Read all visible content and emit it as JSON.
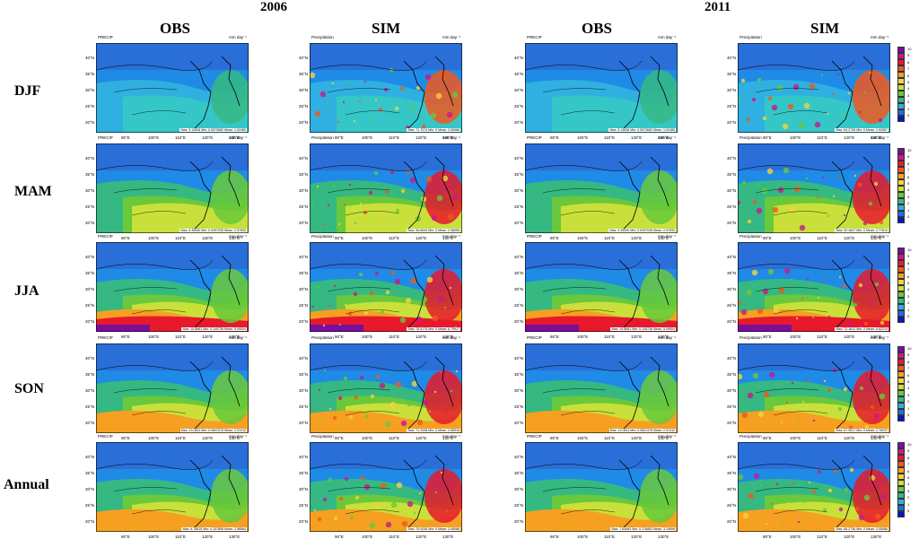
{
  "years": [
    {
      "label": "2006"
    },
    {
      "label": "2011"
    }
  ],
  "columns": [
    "OBS",
    "SIM",
    "OBS",
    "SIM"
  ],
  "rows": [
    "DJF",
    "MAM",
    "JJA",
    "SON",
    "Annual"
  ],
  "panel_text": {
    "obs_title": "PRECIP",
    "sim_title": "Precipitation",
    "unit": "mm day⁻¹",
    "lat_labels": [
      "40°N",
      "35°N",
      "30°N",
      "25°N",
      "20°N"
    ],
    "lon_labels": [
      "90°E",
      "100°E",
      "110°E",
      "120°E",
      "130°E"
    ]
  },
  "panel_stats": [
    [
      "Max: 5.12836  Min: 0.0573682  Mean: 1.02480",
      "Max: 71.7074  Min: 0  Mean: 2.06986",
      "Max: 5.13836  Min: 0.0573682  Mean: 1.02480",
      "Max: 84.2708  Min: 0  Mean: 1.93957"
    ],
    [
      "Max: 9.35530  Min: 0.0497035  Mean: 2.57830",
      "Max: 96.8649  Min: 0  Mean: 2.98058",
      "Max: 9.35530  Min: 0.0497035  Mean: 2.57830",
      "Max: 92.4647  Min: 0  Mean: 2.77610"
    ],
    [
      "Max: 15.8661  Min: 0.149736  Mean: 5.09504",
      "Max: 75.5175  Min: 0  Mean: 6.79917",
      "Max: 15.8661  Min: 0.149736  Mean: 5.09504",
      "Max: 72.1812  Min: 0  Mean: 6.82215"
    ],
    [
      "Max: 13.0811  Min: 0.0601378  Mean: 2.01242",
      "Max: 71.2938  Min: 0  Mean: 2.65518",
      "Max: 13.0811  Min: 0.0601378  Mean: 2.01242",
      "Max: 67.9617  Min: 0  Mean: 2.78297"
    ],
    [
      "Max: 6.76615  Min: 0.157858  Mean: 2.58584",
      "Max: 70.0036  Min: 0  Mean: 3.06086",
      "Max: 7.64683  Min: 0.176852  Mean: 3.19898",
      "Max: 66.2736  Min: 0  Mean: 3.05086"
    ]
  ],
  "colorbar": {
    "ticks": [
      "10",
      "9",
      "8",
      "7",
      "6",
      "5",
      "4",
      "3",
      "2",
      "1",
      "0"
    ],
    "colors": [
      "#7a0f9e",
      "#c8188c",
      "#e8192c",
      "#f0581e",
      "#f6a021",
      "#f5d23a",
      "#c9e03a",
      "#69c83b",
      "#35b882",
      "#2fb0e0",
      "#1e6de0",
      "#0a14c8"
    ]
  },
  "chart_data": [
    {
      "type": "heatmap",
      "title": "OBS DJF 2006",
      "variable": "PRECIP",
      "unit": "mm day-1",
      "stats": {
        "max": 5.12836,
        "min": 0.0573682,
        "mean": 1.0248
      }
    },
    {
      "type": "heatmap",
      "title": "SIM DJF 2006",
      "variable": "Precipitation",
      "unit": "mm day-1",
      "stats": {
        "max": 71.7074,
        "min": 0,
        "mean": 2.06986
      }
    }
  ]
}
